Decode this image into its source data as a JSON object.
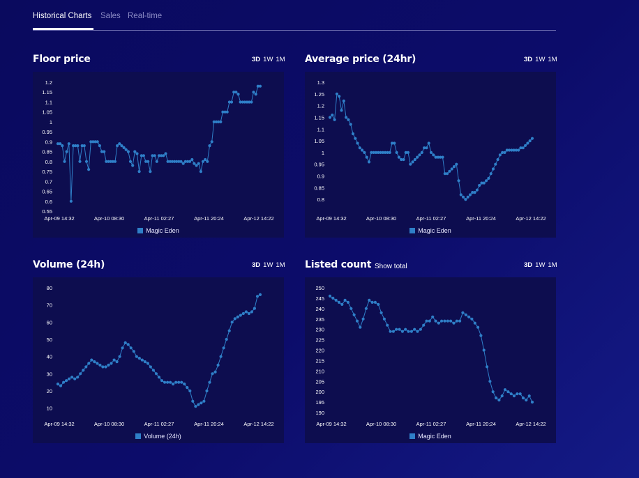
{
  "tabs": [
    {
      "label": "Historical Charts",
      "active": true
    },
    {
      "label": "Sales",
      "active": false
    },
    {
      "label": "Real-time",
      "active": false
    }
  ],
  "range_options": [
    "3D",
    "1W",
    "1M"
  ],
  "selected_range": "3D",
  "series_color": "#2f7fc8",
  "panels": [
    {
      "title": "Floor price",
      "show_total": "",
      "legend": "Magic Eden"
    },
    {
      "title": "Average price (24hr)",
      "show_total": "",
      "legend": "Magic Eden"
    },
    {
      "title": "Volume (24h)",
      "show_total": "",
      "legend": "Volume (24h)"
    },
    {
      "title": "Listed count",
      "show_total": "Show total",
      "legend": "Magic Eden"
    }
  ],
  "chart_data": [
    {
      "type": "line",
      "title": "Floor price",
      "x_tick_labels": [
        "Apr-09 14:32",
        "Apr-10 08:30",
        "Apr-11 02:27",
        "Apr-11 20:24",
        "Apr-12 14:22"
      ],
      "ylim": [
        0.55,
        1.2
      ],
      "y_ticks": [
        0.55,
        0.6,
        0.65,
        0.7,
        0.75,
        0.8,
        0.85,
        0.9,
        0.95,
        1,
        1.05,
        1.1,
        1.15,
        1.2
      ],
      "series": [
        {
          "name": "Magic Eden",
          "values": [
            0.89,
            0.89,
            0.88,
            0.8,
            0.85,
            0.89,
            0.6,
            0.88,
            0.88,
            0.88,
            0.8,
            0.88,
            0.88,
            0.8,
            0.76,
            0.9,
            0.9,
            0.9,
            0.9,
            0.88,
            0.85,
            0.85,
            0.8,
            0.8,
            0.8,
            0.8,
            0.8,
            0.88,
            0.89,
            0.88,
            0.87,
            0.86,
            0.85,
            0.8,
            0.78,
            0.85,
            0.84,
            0.75,
            0.83,
            0.83,
            0.8,
            0.8,
            0.75,
            0.83,
            0.83,
            0.8,
            0.83,
            0.83,
            0.83,
            0.84,
            0.8,
            0.8,
            0.8,
            0.8,
            0.8,
            0.8,
            0.8,
            0.79,
            0.8,
            0.8,
            0.8,
            0.81,
            0.79,
            0.78,
            0.79,
            0.75,
            0.8,
            0.81,
            0.8,
            0.88,
            0.9,
            1.0,
            1.0,
            1.0,
            1.0,
            1.05,
            1.05,
            1.05,
            1.1,
            1.1,
            1.15,
            1.15,
            1.14,
            1.1,
            1.1,
            1.1,
            1.1,
            1.1,
            1.1,
            1.15,
            1.14,
            1.18,
            1.18
          ]
        }
      ]
    },
    {
      "type": "line",
      "title": "Average price (24hr)",
      "x_tick_labels": [
        "Apr-09 14:32",
        "Apr-10 08:30",
        "Apr-11 02:27",
        "Apr-11 20:24",
        "Apr-12 14:22"
      ],
      "ylim": [
        0.75,
        1.3
      ],
      "y_ticks": [
        0.8,
        0.85,
        0.9,
        0.95,
        1,
        1.05,
        1.1,
        1.15,
        1.2,
        1.25,
        1.3
      ],
      "series": [
        {
          "name": "Magic Eden",
          "values": [
            1.15,
            1.16,
            1.14,
            1.25,
            1.24,
            1.18,
            1.22,
            1.15,
            1.14,
            1.12,
            1.08,
            1.06,
            1.04,
            1.02,
            1.01,
            1.0,
            0.98,
            0.96,
            1.0,
            1.0,
            1.0,
            1.0,
            1.0,
            1.0,
            1.0,
            1.0,
            1.0,
            1.04,
            1.04,
            1.0,
            0.98,
            0.97,
            0.97,
            1.0,
            1.0,
            0.95,
            0.96,
            0.97,
            0.98,
            0.99,
            1.0,
            1.02,
            1.02,
            1.04,
            1.0,
            0.99,
            0.98,
            0.98,
            0.98,
            0.98,
            0.91,
            0.91,
            0.92,
            0.93,
            0.94,
            0.95,
            0.88,
            0.82,
            0.81,
            0.8,
            0.81,
            0.82,
            0.83,
            0.83,
            0.84,
            0.86,
            0.87,
            0.87,
            0.88,
            0.89,
            0.91,
            0.93,
            0.95,
            0.97,
            0.99,
            1.0,
            1.0,
            1.01,
            1.01,
            1.01,
            1.01,
            1.01,
            1.01,
            1.02,
            1.02,
            1.03,
            1.04,
            1.05,
            1.06
          ]
        }
      ]
    },
    {
      "type": "line",
      "title": "Volume (24h)",
      "x_tick_labels": [
        "Apr-09 14:32",
        "Apr-10 08:30",
        "Apr-11 02:27",
        "Apr-11 20:24",
        "Apr-12 14:22"
      ],
      "ylim": [
        5,
        80
      ],
      "y_ticks": [
        10,
        20,
        30,
        40,
        50,
        60,
        70,
        80
      ],
      "series": [
        {
          "name": "Volume (24h)",
          "values": [
            24,
            23,
            25,
            26,
            27,
            28,
            27,
            28,
            30,
            32,
            34,
            36,
            38,
            37,
            36,
            35,
            34,
            34,
            35,
            36,
            38,
            37,
            40,
            45,
            48,
            47,
            45,
            43,
            40,
            39,
            38,
            37,
            36,
            34,
            32,
            30,
            28,
            26,
            25,
            25,
            25,
            24,
            25,
            25,
            25,
            24,
            22,
            20,
            14,
            11,
            12,
            13,
            14,
            20,
            25,
            30,
            31,
            35,
            40,
            45,
            50,
            55,
            60,
            62,
            63,
            64,
            65,
            66,
            65,
            66,
            68,
            75,
            76
          ]
        }
      ]
    },
    {
      "type": "line",
      "title": "Listed count",
      "x_tick_labels": [
        "Apr-09 14:32",
        "Apr-10 08:30",
        "Apr-11 02:27",
        "Apr-11 20:24",
        "Apr-12 14:22"
      ],
      "ylim": [
        188,
        250
      ],
      "y_ticks": [
        190,
        195,
        200,
        205,
        210,
        215,
        220,
        225,
        230,
        235,
        240,
        245,
        250
      ],
      "series": [
        {
          "name": "Magic Eden",
          "values": [
            246,
            245,
            244,
            243,
            242,
            244,
            243,
            240,
            237,
            234,
            231,
            235,
            240,
            244,
            243,
            243,
            242,
            238,
            235,
            232,
            229,
            229,
            230,
            230,
            229,
            230,
            229,
            229,
            230,
            229,
            230,
            232,
            234,
            234,
            236,
            234,
            233,
            234,
            234,
            234,
            234,
            233,
            234,
            234,
            238,
            237,
            236,
            235,
            233,
            231,
            227,
            220,
            212,
            205,
            200,
            197,
            196,
            198,
            201,
            200,
            199,
            198,
            199,
            199,
            197,
            196,
            198,
            195
          ]
        }
      ]
    }
  ]
}
